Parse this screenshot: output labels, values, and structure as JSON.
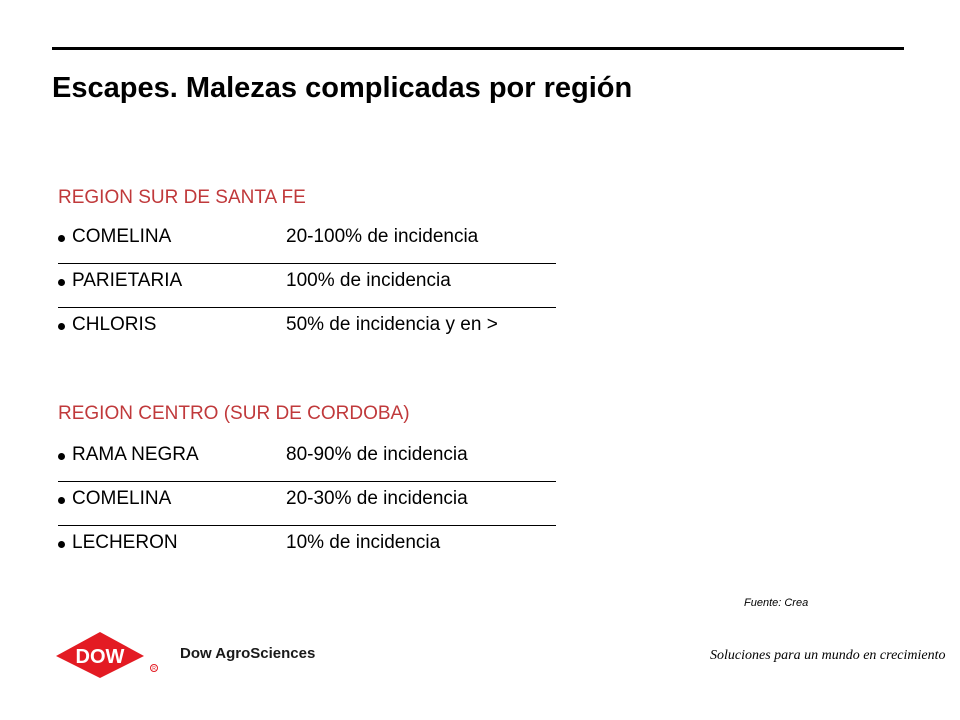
{
  "slide": {
    "title": "Escapes. Malezas complicadas por región"
  },
  "regions": [
    {
      "title": "REGION SUR DE SANTA FE",
      "items": [
        {
          "name": "COMELINA",
          "value": "20-100% de incidencia"
        },
        {
          "name": "PARIETARIA",
          "value": "100% de incidencia"
        },
        {
          "name": "CHLORIS",
          "value": "50% de incidencia y en >"
        }
      ]
    },
    {
      "title": "REGION CENTRO (SUR DE CORDOBA)",
      "items": [
        {
          "name": "RAMA NEGRA",
          "value": "80-90% de incidencia"
        },
        {
          "name": "COMELINA",
          "value": "20-30% de incidencia"
        },
        {
          "name": "LECHERON",
          "value": "10% de incidencia"
        }
      ]
    }
  ],
  "footer": {
    "source": "Fuente: Crea",
    "logo_text": "DOW",
    "company": "Dow AgroSciences",
    "slogan": "Soluciones para un mundo en crecimiento",
    "logo_color": "#e31b23"
  }
}
